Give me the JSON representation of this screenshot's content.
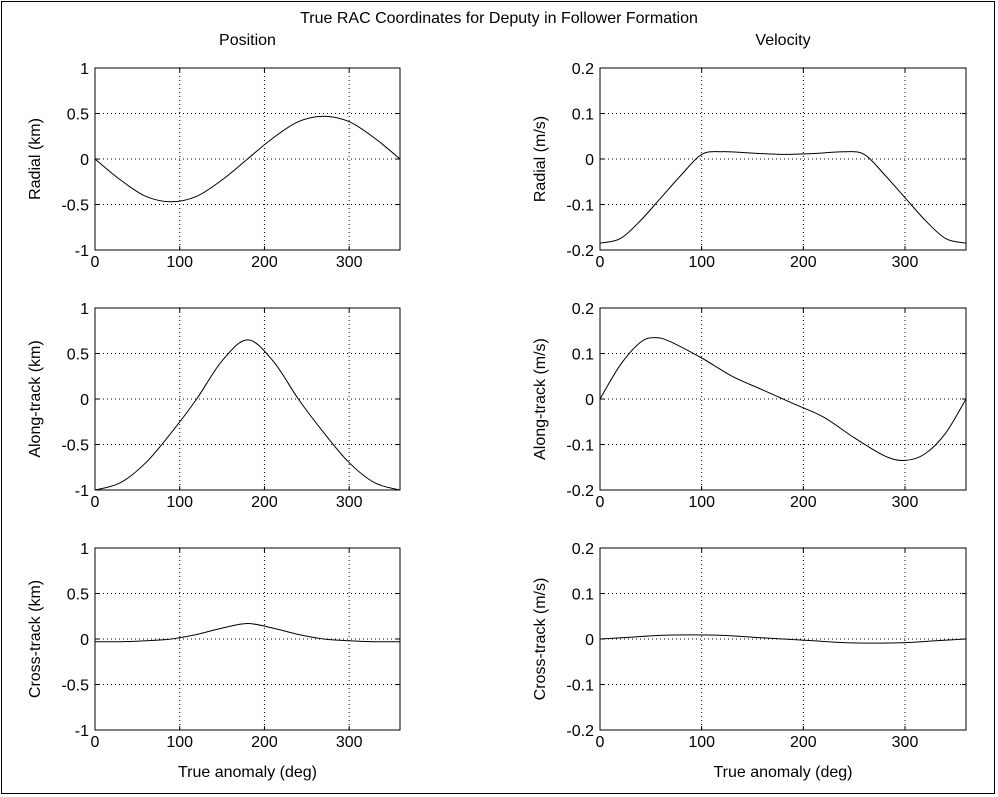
{
  "figure": {
    "title": "True RAC Coordinates for Deputy in Follower Formation",
    "column_titles": [
      "Position",
      "Velocity"
    ],
    "xlabel": "True anomaly (deg)"
  },
  "chart_data": [
    {
      "type": "line",
      "ylabel": "Radial (km)",
      "xlim": [
        0,
        360
      ],
      "ylim": [
        -1,
        1
      ],
      "xticks": [
        "0",
        "100",
        "200",
        "300"
      ],
      "yticks": [
        "1",
        "0.5",
        "0",
        "-0.5",
        "-1"
      ],
      "grid": true,
      "series": [
        {
          "x": [
            0,
            30,
            60,
            90,
            120,
            150,
            180,
            210,
            240,
            270,
            300,
            330,
            360
          ],
          "y": [
            0,
            -0.23,
            -0.41,
            -0.47,
            -0.41,
            -0.23,
            0,
            0.23,
            0.41,
            0.47,
            0.41,
            0.23,
            0
          ]
        }
      ]
    },
    {
      "type": "line",
      "ylabel": "Radial (m/s)",
      "xlim": [
        0,
        360
      ],
      "ylim": [
        -0.2,
        0.2
      ],
      "xticks": [
        "0",
        "100",
        "200",
        "300"
      ],
      "yticks": [
        "0.2",
        "0.1",
        "0",
        "-0.1",
        "-0.2"
      ],
      "grid": true,
      "series": [
        {
          "x": [
            0,
            20,
            40,
            60,
            80,
            100,
            120,
            150,
            180,
            210,
            240,
            260,
            280,
            300,
            320,
            340,
            360
          ],
          "y": [
            -0.185,
            -0.175,
            -0.135,
            -0.085,
            -0.035,
            0.01,
            0.016,
            0.013,
            0.01,
            0.012,
            0.016,
            0.01,
            -0.035,
            -0.085,
            -0.135,
            -0.175,
            -0.185
          ]
        }
      ]
    },
    {
      "type": "line",
      "ylabel": "Along-track (km)",
      "xlim": [
        0,
        360
      ],
      "ylim": [
        -1,
        1
      ],
      "xticks": [
        "0",
        "100",
        "200",
        "300"
      ],
      "yticks": [
        "1",
        "0.5",
        "0",
        "-0.5",
        "-1"
      ],
      "grid": true,
      "series": [
        {
          "x": [
            0,
            30,
            60,
            90,
            120,
            150,
            180,
            210,
            240,
            270,
            300,
            330,
            360
          ],
          "y": [
            -1,
            -0.92,
            -0.7,
            -0.37,
            0.0,
            0.42,
            0.65,
            0.42,
            0.0,
            -0.37,
            -0.7,
            -0.92,
            -1
          ]
        }
      ]
    },
    {
      "type": "line",
      "ylabel": "Along-track (m/s)",
      "xlim": [
        0,
        360
      ],
      "ylim": [
        -0.2,
        0.2
      ],
      "xticks": [
        "0",
        "100",
        "200",
        "300"
      ],
      "yticks": [
        "0.2",
        "0.1",
        "0",
        "-0.1",
        "-0.2"
      ],
      "grid": true,
      "series": [
        {
          "x": [
            0,
            20,
            40,
            55,
            70,
            100,
            130,
            160,
            190,
            220,
            250,
            280,
            300,
            320,
            340,
            360
          ],
          "y": [
            0,
            0.075,
            0.125,
            0.135,
            0.125,
            0.09,
            0.05,
            0.02,
            -0.01,
            -0.04,
            -0.085,
            -0.125,
            -0.135,
            -0.12,
            -0.075,
            0
          ]
        }
      ]
    },
    {
      "type": "line",
      "ylabel": "Cross-track (km)",
      "xlim": [
        0,
        360
      ],
      "ylim": [
        -1,
        1
      ],
      "xticks": [
        "0",
        "100",
        "200",
        "300"
      ],
      "yticks": [
        "1",
        "0.5",
        "0",
        "-0.5",
        "-1"
      ],
      "grid": true,
      "series": [
        {
          "x": [
            0,
            30,
            60,
            90,
            120,
            150,
            180,
            210,
            240,
            270,
            300,
            330,
            360
          ],
          "y": [
            -0.03,
            -0.03,
            -0.02,
            0.0,
            0.05,
            0.12,
            0.17,
            0.12,
            0.05,
            0.0,
            -0.02,
            -0.03,
            -0.03
          ]
        }
      ]
    },
    {
      "type": "line",
      "ylabel": "Cross-track (m/s)",
      "xlim": [
        0,
        360
      ],
      "ylim": [
        -0.2,
        0.2
      ],
      "xticks": [
        "0",
        "100",
        "200",
        "300"
      ],
      "yticks": [
        "0.2",
        "0.1",
        "0",
        "-0.1",
        "-0.2"
      ],
      "grid": true,
      "series": [
        {
          "x": [
            0,
            30,
            60,
            90,
            120,
            150,
            180,
            210,
            240,
            270,
            300,
            330,
            360
          ],
          "y": [
            0,
            0.004,
            0.008,
            0.009,
            0.008,
            0.004,
            0,
            -0.004,
            -0.008,
            -0.009,
            -0.008,
            -0.004,
            0
          ]
        }
      ]
    }
  ]
}
